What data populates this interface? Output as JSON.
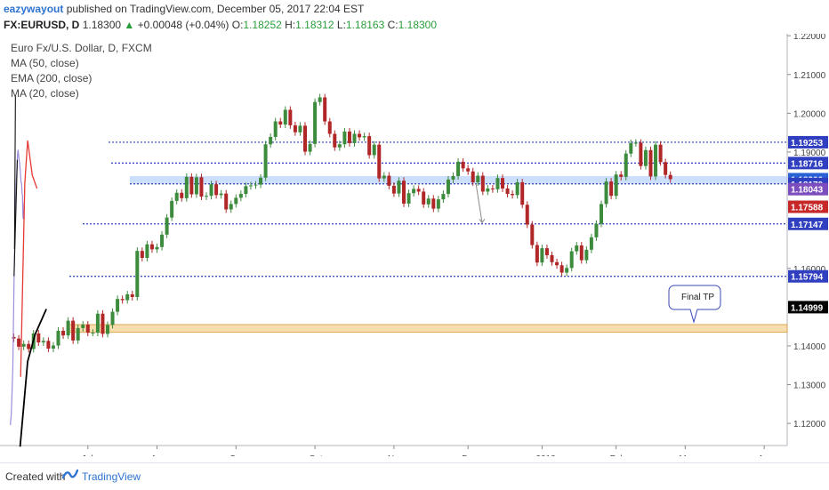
{
  "header": {
    "author": "eazywayout",
    "published_text": "published on TradingView.com, December 05, 2017 22:04 EST",
    "symbol": "FX:EURUSD, D",
    "last": "1.18300",
    "change": "+0.00048 (+0.04%)",
    "o_label": "O:",
    "o": "1.18252",
    "h_label": "H:",
    "h": "1.18312",
    "l_label": "L:",
    "l": "1.18163",
    "c_label": "C:",
    "c": "1.18300"
  },
  "legend": {
    "title": "Euro Fx/U.S. Dollar, D, FXCM",
    "items": [
      "MA (50, close)",
      "EMA (200, close)",
      "MA (20, close)"
    ]
  },
  "footer": {
    "created_with": "Created with",
    "brand": "TradingView"
  },
  "colors": {
    "up": "#3d8b3d",
    "down": "#b12626",
    "ma50": "#000000",
    "ema200": "#e53935",
    "ma20": "#9c8cdb",
    "level": "#2f3fbf",
    "zone": "#f0c36b",
    "current": "#2a62d6"
  },
  "chart_data": {
    "type": "candlestick",
    "symbol": "EURUSD",
    "timeframe": "D",
    "x_tick_labels": [
      "Jul",
      "Aug",
      "Sep",
      "Oct",
      "Nov",
      "Dec",
      "2018",
      "Feb",
      "Mar",
      "Apr"
    ],
    "y_tick_labels": [
      "1.22000",
      "1.21000",
      "1.20000",
      "1.19000",
      "1.16000",
      "1.14000",
      "1.13000",
      "1.12000"
    ],
    "ylim": [
      1.1143,
      1.2205
    ],
    "price_tags": [
      {
        "value": "1.19253",
        "color": "#2f3fbf"
      },
      {
        "value": "1.18716",
        "color": "#2f3fbf"
      },
      {
        "value": "1.18300",
        "color": "#2a62d6"
      },
      {
        "value": "1.18179",
        "color": "#2f3fbf"
      },
      {
        "value": "1.18043",
        "color": "#7c4dbd"
      },
      {
        "value": "1.17588",
        "color": "#c62828"
      },
      {
        "value": "1.17147",
        "color": "#2f3fbf"
      },
      {
        "value": "1.15794",
        "color": "#2f3fbf"
      },
      {
        "value": "1.14999",
        "color": "#000000"
      }
    ],
    "horizontal_levels": [
      1.19253,
      1.18716,
      1.18179,
      1.17147,
      1.15794
    ],
    "supply_zone": [
      1.1435,
      1.1455
    ],
    "annotation": "Final TP",
    "close_series": [
      1.1423,
      1.1419,
      1.1398,
      1.1405,
      1.1392,
      1.1432,
      1.1409,
      1.1413,
      1.1393,
      1.1401,
      1.1439,
      1.1427,
      1.1465,
      1.1414,
      1.1446,
      1.1455,
      1.1434,
      1.1434,
      1.1483,
      1.1431,
      1.1454,
      1.1488,
      1.1521,
      1.1518,
      1.1533,
      1.1526,
      1.1645,
      1.1627,
      1.1662,
      1.1649,
      1.1655,
      1.1687,
      1.1731,
      1.1774,
      1.1795,
      1.1781,
      1.1836,
      1.1791,
      1.1835,
      1.1785,
      1.1787,
      1.1817,
      1.1789,
      1.1793,
      1.1752,
      1.1766,
      1.1782,
      1.1792,
      1.1812,
      1.1814,
      1.1816,
      1.1834,
      1.192,
      1.1939,
      1.1979,
      1.1971,
      1.2009,
      1.1969,
      1.1951,
      1.1968,
      1.1901,
      1.1921,
      1.2029,
      1.2041,
      1.1979,
      1.1947,
      1.1912,
      1.192,
      1.1953,
      1.1923,
      1.1947,
      1.1938,
      1.1941,
      1.1892,
      1.1919,
      1.1832,
      1.1839,
      1.1813,
      1.1793,
      1.1826,
      1.1767,
      1.1794,
      1.1805,
      1.1798,
      1.1765,
      1.178,
      1.1754,
      1.1778,
      1.1792,
      1.1829,
      1.1838,
      1.1875,
      1.1858,
      1.185,
      1.1822,
      1.1839,
      1.1798,
      1.1806,
      1.1804,
      1.1833,
      1.1806,
      1.1792,
      1.1789,
      1.1822,
      1.1764,
      1.1713,
      1.166,
      1.1615,
      1.1652,
      1.1634,
      1.1616,
      1.1608,
      1.1589,
      1.1601,
      1.1644,
      1.1659,
      1.1621,
      1.1648,
      1.168,
      1.1715,
      1.1766,
      1.1824,
      1.1787,
      1.1842,
      1.1836,
      1.1896,
      1.1923,
      1.1924,
      1.1864,
      1.1905,
      1.1837,
      1.1919,
      1.1874,
      1.1841,
      1.183
    ],
    "ma20": [
      [
        1.116,
        1.1196
      ],
      [
        1.1255,
        1.1226
      ],
      [
        1.142,
        1.134
      ],
      [
        1.156,
        1.1585
      ],
      [
        1.168,
        1.1752
      ],
      [
        1.18,
        1.1826
      ],
      [
        1.192,
        1.1892
      ],
      [
        1.1982,
        1.1906
      ],
      [
        1.204,
        1.1892
      ],
      [
        1.215,
        1.187
      ],
      [
        1.221,
        1.1854
      ],
      [
        1.2292,
        1.1824
      ],
      [
        1.2356,
        1.1818
      ],
      [
        1.242,
        1.1792
      ],
      [
        1.2456,
        1.1788
      ],
      [
        1.2478,
        1.1747
      ],
      [
        1.252,
        1.1727
      ],
      [
        1.2585,
        1.1739
      ],
      [
        1.262,
        1.177
      ]
    ],
    "ema200": [
      [
        1.225,
        1.132
      ],
      [
        1.27,
        1.182
      ],
      [
        1.3,
        1.193
      ],
      [
        1.35,
        1.184
      ],
      [
        1.4,
        1.1806
      ]
    ],
    "ma50": [
      [
        1.22,
        1.114
      ],
      [
        1.3,
        1.136
      ],
      [
        1.38,
        1.143
      ],
      [
        1.5,
        1.1495
      ]
    ],
    "channel": {
      "upper": [
        [
          1.16,
          1.165
        ],
        [
          1.17,
          1.2047
        ]
      ],
      "lower": [
        [
          1.1552,
          1.158
        ],
        [
          1.19,
          1.188
        ]
      ]
    },
    "projection": [
      [
        1.182,
        1.181
      ],
      [
        1.175,
        1.176
      ]
    ]
  }
}
